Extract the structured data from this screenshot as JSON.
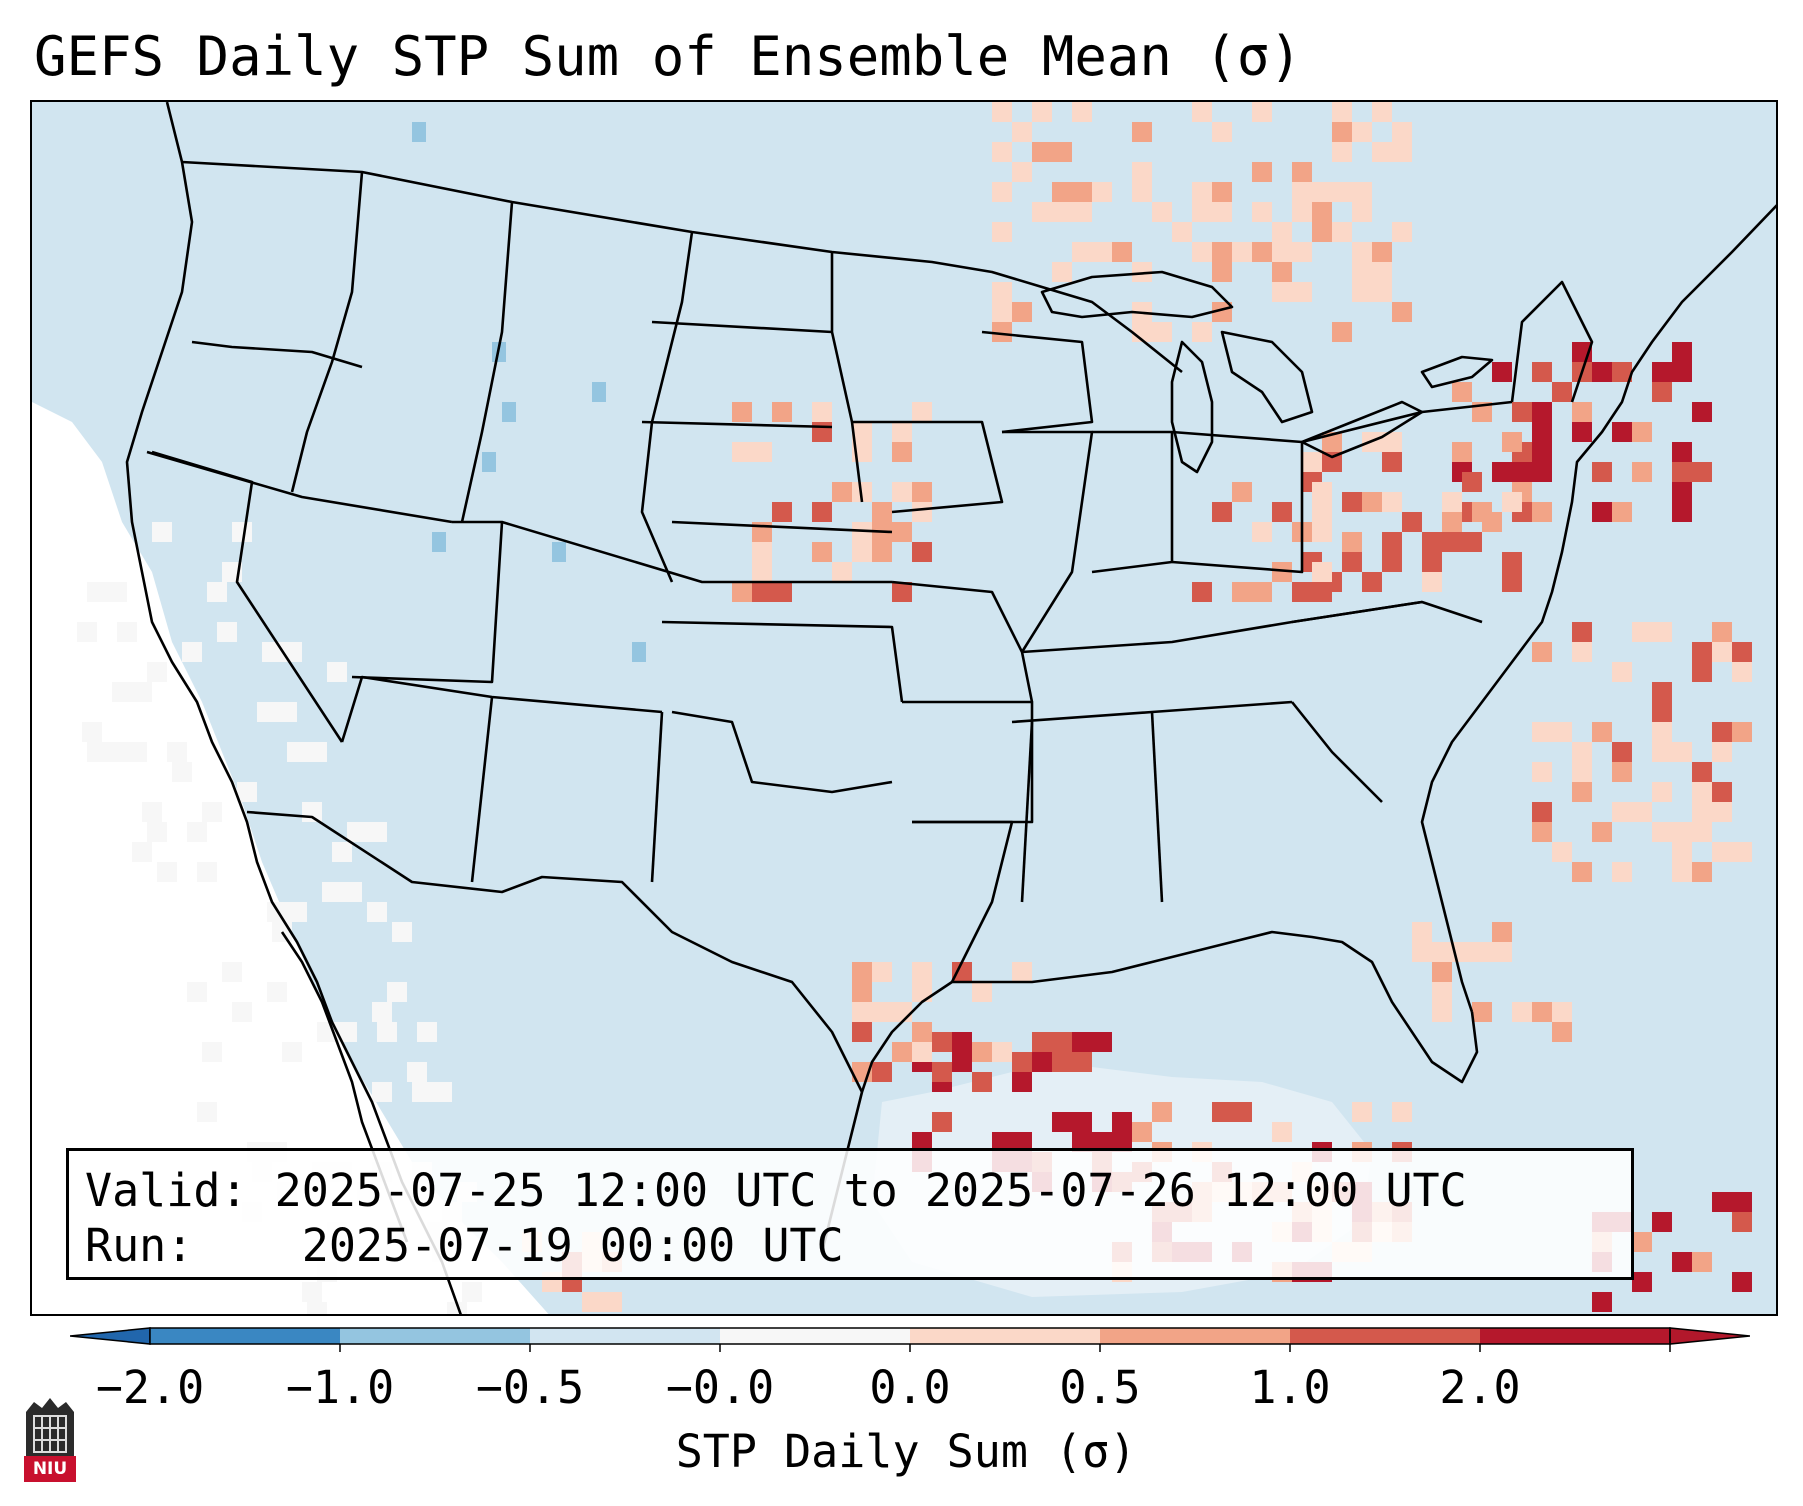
{
  "title": "GEFS Daily STP Sum of Ensemble Mean (σ)",
  "info": {
    "valid_label": "Valid:",
    "valid_value": "2025-07-25 12:00 UTC to 2025-07-26 12:00 UTC",
    "run_label": "Run:",
    "run_value": "2025-07-19 00:00 UTC"
  },
  "colorbar": {
    "title": "STP Daily Sum (σ)",
    "tick_labels": [
      "−2.0",
      "−1.0",
      "−0.5",
      "−0.0",
      "0.0",
      "0.5",
      "1.0",
      "2.0"
    ],
    "bin_colors": [
      "#3a87c2",
      "#94c5e0",
      "#d2e5f1",
      "#f7f7f7",
      "#fbd8c8",
      "#f2a487",
      "#d4594c",
      "#b5182c"
    ],
    "extend_low_color": "#2166ac",
    "extend_high_color": "#b2182b"
  },
  "map": {
    "land_color": "#d1e5f0",
    "ocean_color": "#ffffff",
    "border_color": "#000000"
  },
  "logo": {
    "text": "NIU",
    "color": "#c8102e"
  }
}
